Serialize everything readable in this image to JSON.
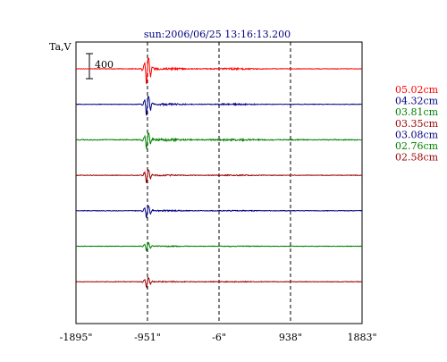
{
  "chart_data": {
    "type": "line",
    "title": "sun:2006/06/25 13:16:13.200",
    "ylabel": "Ta,V",
    "scale_bar_label": "400",
    "x_ticks": [
      "-1895\"",
      "-951\"",
      "-6\"",
      "938\"",
      "1883\""
    ],
    "x_tick_values": [
      -1895,
      -951,
      -6,
      938,
      1883
    ],
    "xlim": [
      -1895,
      1883
    ],
    "grid": "vertical dashed at -951, -6, 938",
    "legend_position": "right",
    "series": [
      {
        "name": "05.02cm",
        "color": "#ff0000",
        "wave_amp": 1.0
      },
      {
        "name": "04.32cm",
        "color": "#000080",
        "wave_amp": 0.75
      },
      {
        "name": "03.81cm",
        "color": "#008000",
        "wave_amp": 0.6
      },
      {
        "name": "03.35cm",
        "color": "#990000",
        "wave_amp": 0.5
      },
      {
        "name": "03.08cm",
        "color": "#000080",
        "wave_amp": 0.45
      },
      {
        "name": "02.76cm",
        "color": "#008000",
        "wave_amp": 0.3
      },
      {
        "name": "02.58cm",
        "color": "#990000",
        "wave_amp": 0.35
      }
    ]
  }
}
